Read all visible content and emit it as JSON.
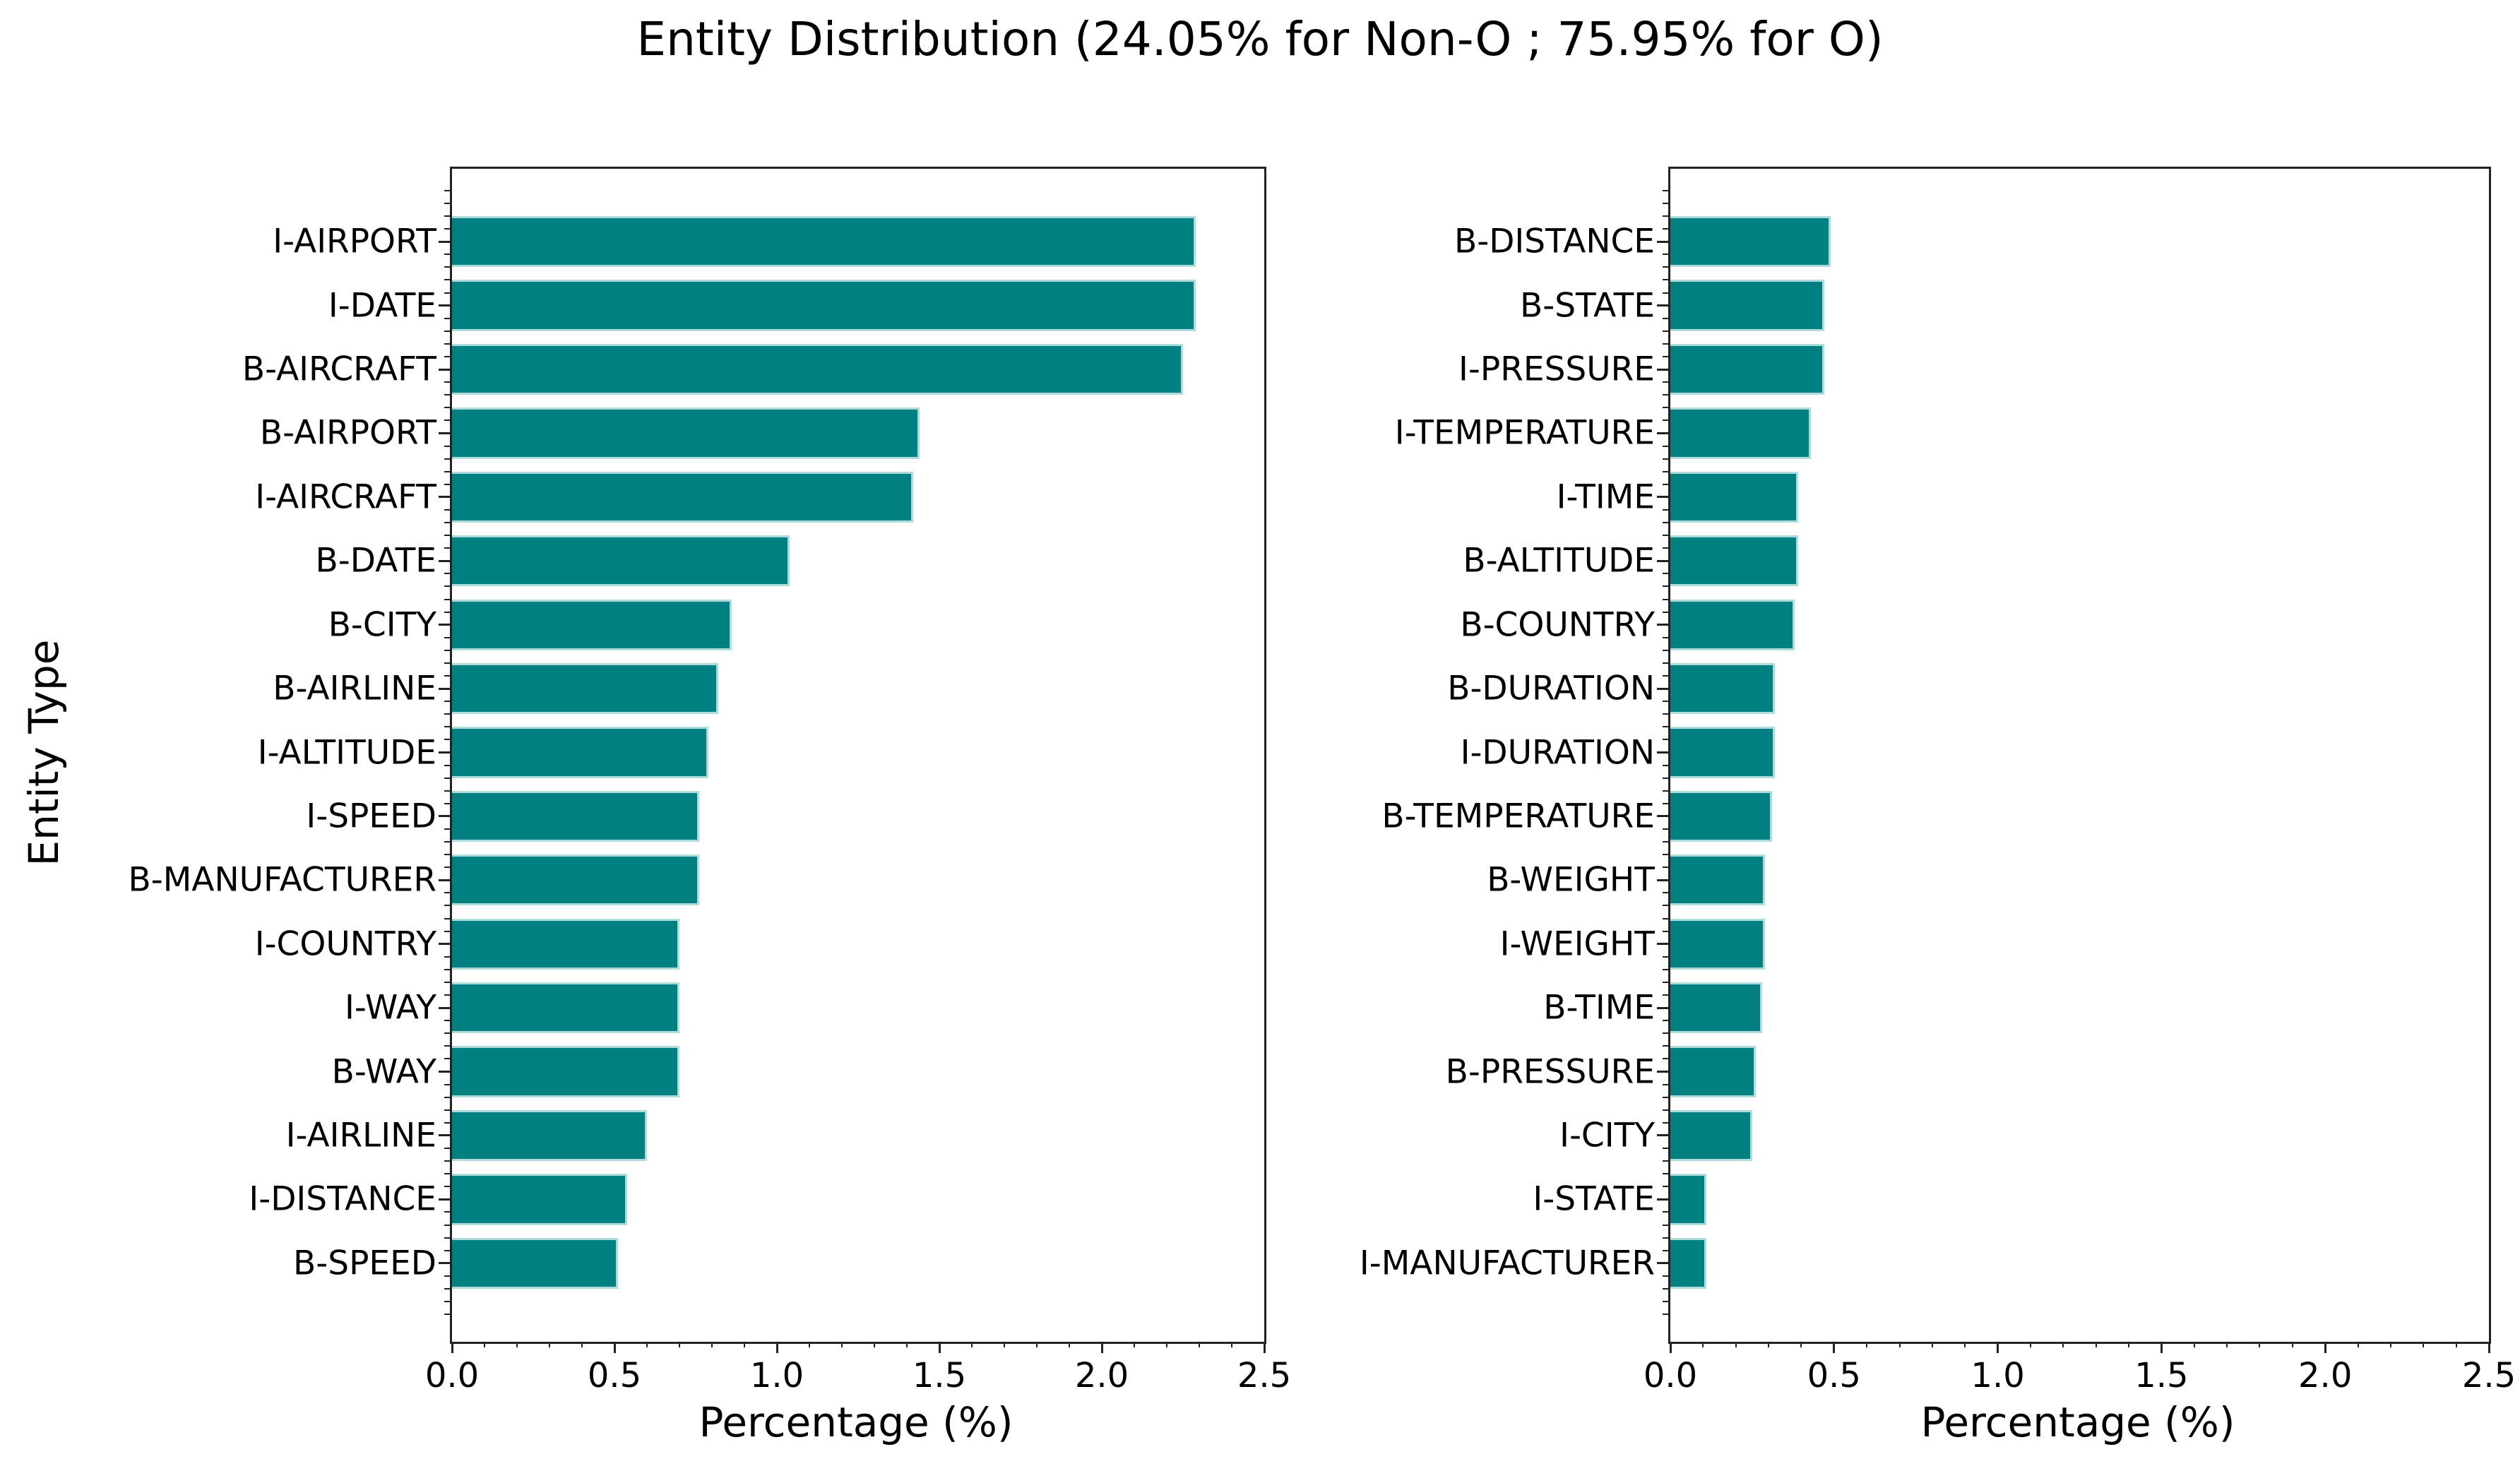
{
  "figure": {
    "title": "Entity Distribution (24.05% for Non-O ; 75.95% for O)",
    "ylabel": "Entity Type",
    "colors": {
      "bar_fill": "#008080",
      "bar_edge": "#aedcdc",
      "spine": "#222222",
      "text": "#000000",
      "background": "#ffffff"
    }
  },
  "chart_data": [
    {
      "type": "bar",
      "orientation": "horizontal",
      "title": "",
      "xlabel": "Percentage (%)",
      "ylabel": "Entity Type",
      "xlim": [
        0,
        2.5
      ],
      "xticks": [
        0.0,
        0.5,
        1.0,
        1.5,
        2.0,
        2.5
      ],
      "xticklabels": [
        "0.0",
        "0.5",
        "1.0",
        "1.5",
        "2.0",
        "2.5"
      ],
      "grid": false,
      "legend": false,
      "categories": [
        "I-AIRPORT",
        "I-DATE",
        "B-AIRCRAFT",
        "B-AIRPORT",
        "I-AIRCRAFT",
        "B-DATE",
        "B-CITY",
        "B-AIRLINE",
        "I-ALTITUDE",
        "I-SPEED",
        "B-MANUFACTURER",
        "I-COUNTRY",
        "I-WAY",
        "B-WAY",
        "I-AIRLINE",
        "I-DISTANCE",
        "B-SPEED"
      ],
      "values": [
        2.29,
        2.29,
        2.25,
        1.44,
        1.42,
        1.04,
        0.86,
        0.82,
        0.79,
        0.76,
        0.76,
        0.7,
        0.7,
        0.7,
        0.6,
        0.54,
        0.51
      ]
    },
    {
      "type": "bar",
      "orientation": "horizontal",
      "title": "",
      "xlabel": "Percentage (%)",
      "ylabel": "",
      "xlim": [
        0,
        2.5
      ],
      "xticks": [
        0.0,
        0.5,
        1.0,
        1.5,
        2.0,
        2.5
      ],
      "xticklabels": [
        "0.0",
        "0.5",
        "1.0",
        "1.5",
        "2.0",
        "2.5"
      ],
      "grid": false,
      "legend": false,
      "categories": [
        "B-DISTANCE",
        "B-STATE",
        "I-PRESSURE",
        "I-TEMPERATURE",
        "I-TIME",
        "B-ALTITUDE",
        "B-COUNTRY",
        "B-DURATION",
        "I-DURATION",
        "B-TEMPERATURE",
        "B-WEIGHT",
        "I-WEIGHT",
        "B-TIME",
        "B-PRESSURE",
        "I-CITY",
        "I-STATE",
        "I-MANUFACTURER"
      ],
      "values": [
        0.49,
        0.47,
        0.47,
        0.43,
        0.39,
        0.39,
        0.38,
        0.32,
        0.32,
        0.31,
        0.29,
        0.29,
        0.28,
        0.26,
        0.25,
        0.11,
        0.11
      ]
    }
  ]
}
